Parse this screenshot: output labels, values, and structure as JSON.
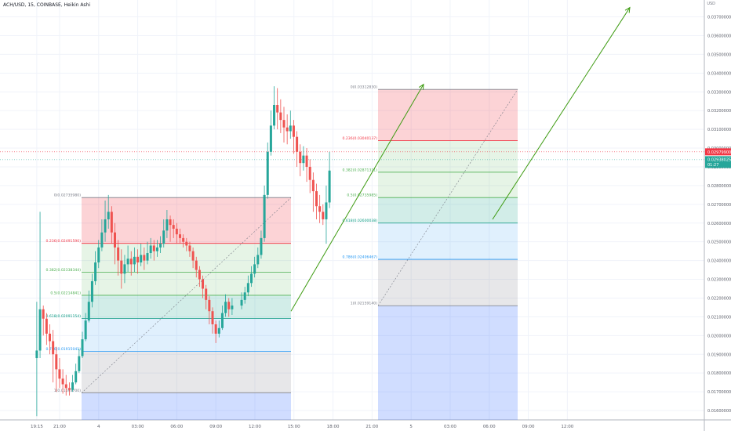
{
  "header": {
    "symbol_line": "ACH/USD, 15, COINBASE, Heikin Ashi",
    "currency": "USD"
  },
  "price_tags": {
    "last_price": "0.02979900",
    "current_price": "0.02938025",
    "countdown": "01:27"
  },
  "colors": {
    "up": "#26a69a",
    "down": "#ef5350",
    "arrow": "#3e9b12",
    "grid": "#f0f3fa"
  },
  "fib_left": {
    "levels": [
      {
        "label": "0(0.02735980)",
        "value": 0.0273598
      },
      {
        "label": "0.236(0.02491590)",
        "value": 0.0249159
      },
      {
        "label": "0.382(0.02338344)",
        "value": 0.02338344
      },
      {
        "label": "0.5(0.02214841)",
        "value": 0.02214841
      },
      {
        "label": "0.618(0.02091154)",
        "value": 0.02091154
      },
      {
        "label": "0.786(0.01915041)",
        "value": 0.01915041
      },
      {
        "label": "1(0.01693700)",
        "value": 0.016937
      }
    ]
  },
  "fib_right": {
    "levels": [
      {
        "label": "0(0.03312830)",
        "value": 0.0331283
      },
      {
        "label": "0.236(0.03040137)",
        "value": 0.03040137
      },
      {
        "label": "0.382(0.02871311)",
        "value": 0.02871311
      },
      {
        "label": "0.5(0.02735985)",
        "value": 0.02735985
      },
      {
        "label": "0.618(0.02600038)",
        "value": 0.02600038
      },
      {
        "label": "0.786(0.02406467)",
        "value": 0.02406467
      },
      {
        "label": "1(0.02159140)",
        "value": 0.0215914
      }
    ]
  },
  "chart_data": {
    "type": "candlestick",
    "title": "ACH/USD, 15, COINBASE, Heikin Ashi",
    "ylabel": "USD",
    "ylim": [
      0.0155,
      0.0379
    ],
    "y_ticks": [
      "0.01600000",
      "0.01700000",
      "0.01800000",
      "0.01900000",
      "0.02000000",
      "0.02100000",
      "0.02200000",
      "0.02300000",
      "0.02400000",
      "0.02500000",
      "0.02600000",
      "0.02700000",
      "0.02800000",
      "0.02900000",
      "0.03000000",
      "0.03100000",
      "0.03200000",
      "0.03300000",
      "0.03400000",
      "0.03500000",
      "0.03600000",
      "0.03700000",
      "0.03800000"
    ],
    "x_ticks": [
      "19:15",
      "21:00",
      "4",
      "03:00",
      "06:00",
      "09:00",
      "12:00",
      "15:00",
      "18:00",
      "21:00",
      "5",
      "03:00",
      "06:00",
      "09:00",
      "12:00"
    ],
    "candles": [
      [
        0.0188,
        0.0192,
        0.0218,
        0.0157
      ],
      [
        0.0192,
        0.0214,
        0.0266,
        0.0188
      ],
      [
        0.0214,
        0.0209,
        0.0216,
        0.02
      ],
      [
        0.0209,
        0.0201,
        0.0212,
        0.0195
      ],
      [
        0.0201,
        0.0197,
        0.0206,
        0.019
      ],
      [
        0.0197,
        0.019,
        0.0203,
        0.0175
      ],
      [
        0.019,
        0.0182,
        0.0194,
        0.017
      ],
      [
        0.0182,
        0.0177,
        0.0188,
        0.0172
      ],
      [
        0.0177,
        0.0174,
        0.0182,
        0.0169
      ],
      [
        0.0174,
        0.0172,
        0.0179,
        0.0168
      ],
      [
        0.0172,
        0.0171,
        0.0175,
        0.0168
      ],
      [
        0.0171,
        0.0175,
        0.0179,
        0.017
      ],
      [
        0.0175,
        0.0181,
        0.0185,
        0.0174
      ],
      [
        0.0181,
        0.0189,
        0.0193,
        0.018
      ],
      [
        0.0189,
        0.0198,
        0.0202,
        0.0188
      ],
      [
        0.0198,
        0.0208,
        0.0212,
        0.0197
      ],
      [
        0.0208,
        0.0218,
        0.0224,
        0.0207
      ],
      [
        0.0218,
        0.0229,
        0.0233,
        0.0215
      ],
      [
        0.0229,
        0.0239,
        0.0245,
        0.0227
      ],
      [
        0.0239,
        0.0247,
        0.0251,
        0.0236
      ],
      [
        0.0247,
        0.0255,
        0.0262,
        0.0245
      ],
      [
        0.0255,
        0.0262,
        0.0272,
        0.025
      ],
      [
        0.0262,
        0.0266,
        0.0275,
        0.0257
      ],
      [
        0.0266,
        0.0255,
        0.0269,
        0.0249
      ],
      [
        0.0255,
        0.0247,
        0.026,
        0.0238
      ],
      [
        0.0247,
        0.024,
        0.0251,
        0.0232
      ],
      [
        0.024,
        0.0233,
        0.0246,
        0.0225
      ],
      [
        0.0233,
        0.0238,
        0.0243,
        0.0228
      ],
      [
        0.0238,
        0.0241,
        0.0248,
        0.0234
      ],
      [
        0.0241,
        0.0238,
        0.0245,
        0.0232
      ],
      [
        0.0238,
        0.0242,
        0.0247,
        0.0234
      ],
      [
        0.0242,
        0.0239,
        0.0246,
        0.0233
      ],
      [
        0.0239,
        0.0243,
        0.0249,
        0.0237
      ],
      [
        0.0243,
        0.024,
        0.0247,
        0.0235
      ],
      [
        0.024,
        0.0244,
        0.025,
        0.0238
      ],
      [
        0.0244,
        0.0248,
        0.0252,
        0.0241
      ],
      [
        0.0248,
        0.0245,
        0.0251,
        0.024
      ],
      [
        0.0245,
        0.0247,
        0.0251,
        0.0242
      ],
      [
        0.0247,
        0.0249,
        0.0253,
        0.0244
      ],
      [
        0.0249,
        0.0256,
        0.0262,
        0.0247
      ],
      [
        0.0256,
        0.0262,
        0.0267,
        0.0252
      ],
      [
        0.0262,
        0.0259,
        0.0264,
        0.025
      ],
      [
        0.0259,
        0.0257,
        0.0262,
        0.0252
      ],
      [
        0.0257,
        0.0254,
        0.026,
        0.0249
      ],
      [
        0.0254,
        0.0252,
        0.0257,
        0.0249
      ],
      [
        0.0252,
        0.025,
        0.0254,
        0.0247
      ],
      [
        0.025,
        0.0248,
        0.0252,
        0.0245
      ],
      [
        0.0248,
        0.0245,
        0.025,
        0.0242
      ],
      [
        0.0245,
        0.024,
        0.0247,
        0.0236
      ],
      [
        0.024,
        0.0235,
        0.0242,
        0.0231
      ],
      [
        0.0235,
        0.023,
        0.0237,
        0.0226
      ],
      [
        0.023,
        0.0225,
        0.0232,
        0.022
      ],
      [
        0.0225,
        0.0219,
        0.0227,
        0.0214
      ],
      [
        0.0219,
        0.0213,
        0.0221,
        0.0206
      ],
      [
        0.0213,
        0.0206,
        0.0215,
        0.0201
      ],
      [
        0.0206,
        0.0201,
        0.0208,
        0.0196
      ],
      [
        0.0201,
        0.0204,
        0.0208,
        0.0199
      ],
      [
        0.0204,
        0.0212,
        0.0216,
        0.0203
      ],
      [
        0.0212,
        0.0218,
        0.0222,
        0.021
      ],
      [
        0.0218,
        0.0214,
        0.022,
        0.021
      ],
      [
        0.0214,
        0.0216,
        0.022,
        0.0211
      ],
      [
        0.0216,
        0.0219,
        0.0223,
        0.0214
      ],
      [
        0.0219,
        0.0223,
        0.0226,
        0.0217
      ],
      [
        0.0223,
        0.0228,
        0.0232,
        0.0221
      ],
      [
        0.0228,
        0.0233,
        0.0237,
        0.0226
      ],
      [
        0.0233,
        0.0238,
        0.0242,
        0.0231
      ],
      [
        0.0238,
        0.0243,
        0.0247,
        0.0236
      ],
      [
        0.0243,
        0.0252,
        0.0256,
        0.0241
      ],
      [
        0.0252,
        0.0275,
        0.028,
        0.025
      ],
      [
        0.0275,
        0.0298,
        0.0303,
        0.0273
      ],
      [
        0.0298,
        0.0312,
        0.032,
        0.0296
      ],
      [
        0.0312,
        0.0323,
        0.0333,
        0.031
      ],
      [
        0.0323,
        0.0319,
        0.0332,
        0.031
      ],
      [
        0.0319,
        0.0315,
        0.0326,
        0.0308
      ],
      [
        0.0315,
        0.0311,
        0.0322,
        0.0303
      ],
      [
        0.0311,
        0.0309,
        0.0318,
        0.0302
      ],
      [
        0.0309,
        0.0312,
        0.032,
        0.0305
      ],
      [
        0.0312,
        0.0306,
        0.0315,
        0.0297
      ],
      [
        0.0306,
        0.0298,
        0.0309,
        0.029
      ],
      [
        0.0298,
        0.0292,
        0.0302,
        0.0285
      ],
      [
        0.0292,
        0.0296,
        0.0301,
        0.0288
      ],
      [
        0.0296,
        0.029,
        0.03,
        0.0282
      ],
      [
        0.029,
        0.0283,
        0.0294,
        0.0276
      ],
      [
        0.0283,
        0.0277,
        0.0287,
        0.0266
      ],
      [
        0.0277,
        0.0269,
        0.0281,
        0.0262
      ],
      [
        0.0269,
        0.0266,
        0.0275,
        0.026
      ],
      [
        0.0266,
        0.0262,
        0.027,
        0.0259
      ],
      [
        0.0262,
        0.0271,
        0.028,
        0.0249
      ],
      [
        0.0271,
        0.0288,
        0.0298,
        0.0268
      ]
    ],
    "arrows": [
      {
        "from": [
          "17:30",
          0.0213
        ],
        "to": [
          "18:45",
          0.0334
        ]
      },
      {
        "from": [
          "02:15",
          0.0262
        ],
        "to": [
          "10:45",
          0.0375
        ]
      }
    ],
    "grid": true
  }
}
